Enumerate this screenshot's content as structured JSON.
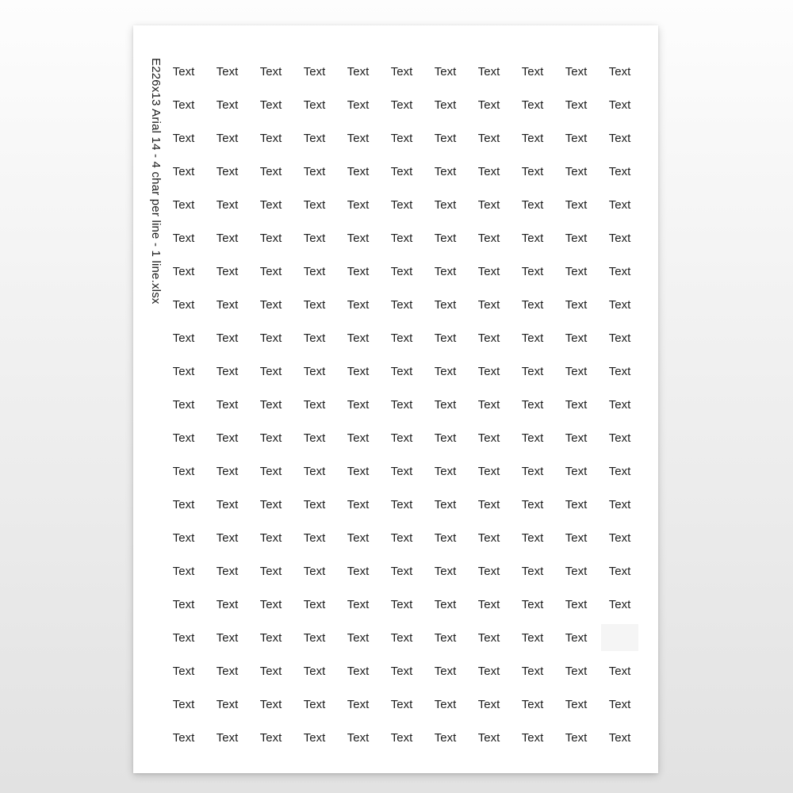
{
  "document": {
    "filename_label": "E226x13 Arial 14 - 4 char per line - 1 line.xlsx"
  },
  "grid": {
    "rows": 21,
    "cols": 11,
    "cell_text": "Text",
    "empty_cells": [
      {
        "row": 18,
        "col": 11
      }
    ]
  },
  "colors": {
    "page_background": "#ffffff",
    "backdrop_top": "#fdfdfd",
    "backdrop_bottom": "#e2e2e2",
    "text": "#1c1c1c",
    "empty_cell_background": "#f5f5f5"
  }
}
